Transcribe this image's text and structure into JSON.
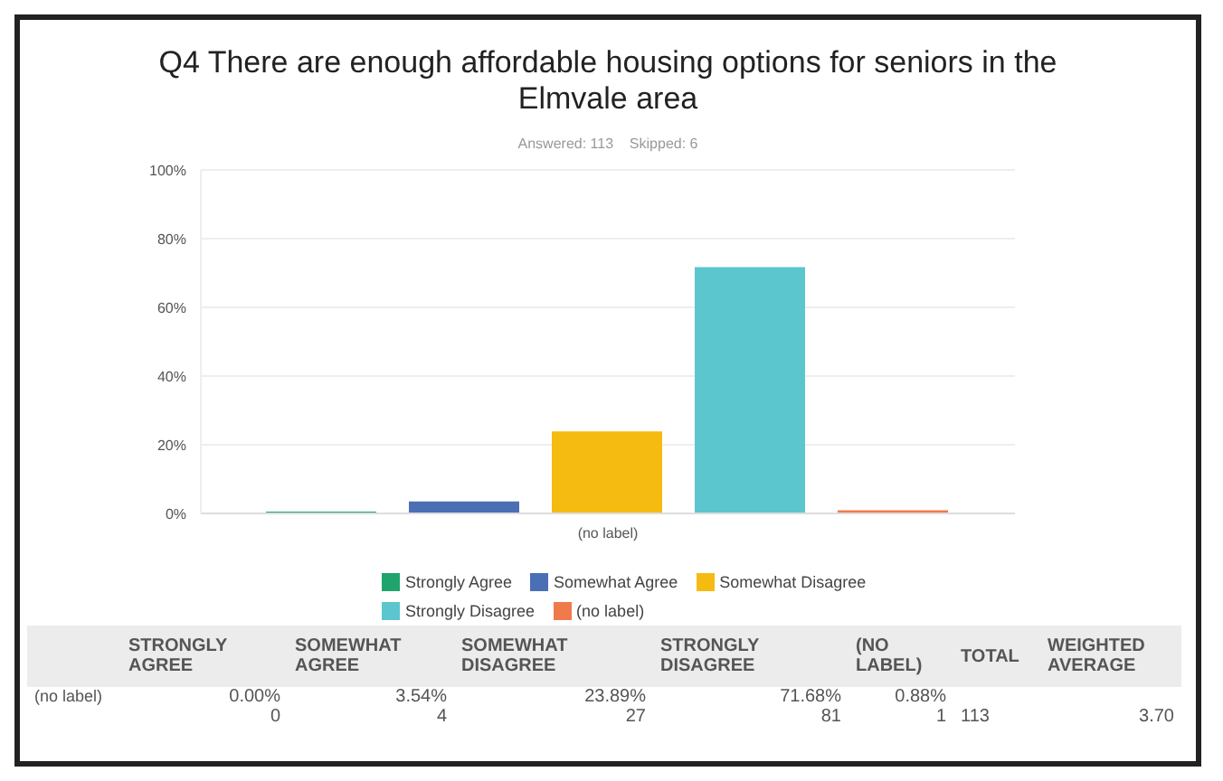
{
  "chart_data": {
    "type": "bar",
    "title": "Q4 There are enough affordable housing options for seniors in the Elmvale area",
    "subtitle": "Answered: 113    Skipped: 6",
    "categories": [
      "(no label)"
    ],
    "series": [
      {
        "name": "Strongly Agree",
        "color": "#1ea46c",
        "values": [
          0
        ]
      },
      {
        "name": "Somewhat Agree",
        "color": "#4a6fb5",
        "values": [
          3.5
        ]
      },
      {
        "name": "Somewhat Disagree",
        "color": "#f6bb10",
        "values": [
          23.9
        ]
      },
      {
        "name": "Strongly Disagree",
        "color": "#5cc6cf",
        "values": [
          71.7
        ]
      },
      {
        "name": "(no label)",
        "color": "#f07b4a",
        "values": [
          0.9
        ]
      }
    ],
    "ylim": [
      0,
      100
    ],
    "yticks": [
      {
        "value": 0,
        "label": "0%"
      },
      {
        "value": 20,
        "label": "20%"
      },
      {
        "value": 40,
        "label": "40%"
      },
      {
        "value": 60,
        "label": "60%"
      },
      {
        "value": 80,
        "label": "80%"
      },
      {
        "value": 100,
        "label": "100%"
      }
    ],
    "grid": "y",
    "legend": "bottom",
    "annotations": [
      "STRONGLY AGREE",
      "SOMEWHAT AGREE",
      "SOMEWHAT DISAGREE",
      "STRONGLY DISAGREE",
      "(NO LABEL)",
      "TOTAL",
      "WEIGHTED AVERAGE",
      "(no label)",
      "0.00%",
      "3.54%",
      "23.89%",
      "71.68%",
      "0.88%",
      "0",
      "4",
      "27",
      "81",
      "1",
      "113",
      "3.70"
    ]
  }
}
